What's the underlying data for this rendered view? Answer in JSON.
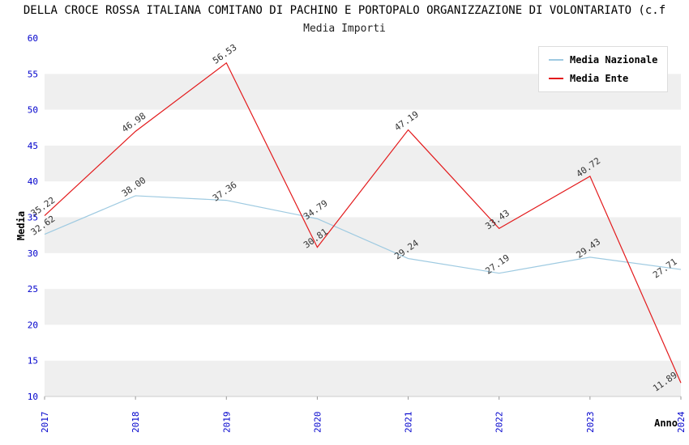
{
  "chart_data": {
    "type": "line",
    "title": "DELLA CROCE ROSSA ITALIANA COMITANO DI PACHINO E PORTOPALO ORGANIZZAZIONE DI VOLONTARIATO (c.f",
    "subtitle": "Media Importi",
    "xlabel": "Anno",
    "ylabel": "Media",
    "categories": [
      "2017",
      "2018",
      "2019",
      "2020",
      "2021",
      "2022",
      "2023",
      "2024"
    ],
    "series": [
      {
        "name": "Media Nazionale",
        "color": "#9ecae1",
        "values": [
          32.62,
          38.0,
          37.36,
          34.79,
          29.24,
          27.19,
          29.43,
          27.71
        ]
      },
      {
        "name": "Media Ente",
        "color": "#e31a1c",
        "values": [
          35.22,
          46.98,
          56.53,
          30.81,
          47.19,
          33.43,
          40.72,
          11.89
        ]
      }
    ],
    "ylim": [
      10,
      60
    ],
    "ytick_step": 5,
    "legend_position": "top-right",
    "grid": "horizontal-bands",
    "band_colors": [
      "#efefef",
      "#ffffff"
    ],
    "axis_label_color": "#0000cc"
  }
}
